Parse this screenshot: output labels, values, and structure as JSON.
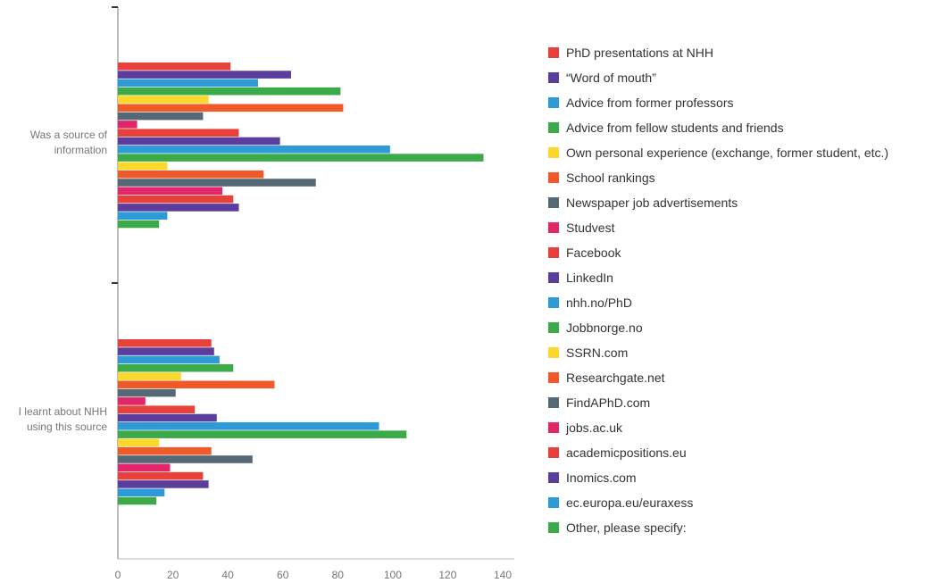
{
  "chart_data": {
    "type": "bar",
    "orientation": "horizontal",
    "categories": [
      "Was a source of information",
      "I learnt about NHH using this source"
    ],
    "category_lines": [
      [
        "Was a source of",
        "information"
      ],
      [
        "I learnt about NHH",
        "using this source"
      ]
    ],
    "xlim": [
      0,
      140
    ],
    "x_ticks": [
      "0",
      "20",
      "40",
      "60",
      "80",
      "100",
      "120",
      "140"
    ],
    "grid": false,
    "legend_position": "right",
    "series": [
      {
        "name": "PhD presentations at NHH",
        "color": "#e8403a",
        "values": [
          41,
          34
        ]
      },
      {
        "name": "“Word of mouth”",
        "color": "#5b3d9e",
        "values": [
          63,
          35
        ]
      },
      {
        "name": "Advice from former professors",
        "color": "#2e9ad8",
        "values": [
          51,
          37
        ]
      },
      {
        "name": "Advice from fellow students and friends",
        "color": "#3daa49",
        "values": [
          81,
          42
        ]
      },
      {
        "name": "Own personal experience (exchange, former student, etc.)",
        "color": "#fcd72c",
        "values": [
          33,
          23
        ]
      },
      {
        "name": "School rankings",
        "color": "#f05a28",
        "values": [
          82,
          57
        ]
      },
      {
        "name": "Newspaper job advertisements",
        "color": "#546975",
        "values": [
          31,
          21
        ]
      },
      {
        "name": "Studvest",
        "color": "#e2266a",
        "values": [
          7,
          10
        ]
      },
      {
        "name": "Facebook",
        "color": "#e8403a",
        "values": [
          44,
          28
        ]
      },
      {
        "name": "LinkedIn",
        "color": "#5b3d9e",
        "values": [
          59,
          36
        ]
      },
      {
        "name": "nhh.no/PhD",
        "color": "#2e9ad8",
        "values": [
          99,
          95
        ]
      },
      {
        "name": "Jobbnorge.no",
        "color": "#3daa49",
        "values": [
          133,
          105
        ]
      },
      {
        "name": "SSRN.com",
        "color": "#fcd72c",
        "values": [
          18,
          15
        ]
      },
      {
        "name": "Researchgate.net",
        "color": "#f05a28",
        "values": [
          53,
          34
        ]
      },
      {
        "name": "FindAPhD.com",
        "color": "#546975",
        "values": [
          72,
          49
        ]
      },
      {
        "name": "jobs.ac.uk",
        "color": "#e2266a",
        "values": [
          38,
          19
        ]
      },
      {
        "name": "academicpositions.eu",
        "color": "#e8403a",
        "values": [
          42,
          31
        ]
      },
      {
        "name": "Inomics.com",
        "color": "#5b3d9e",
        "values": [
          44,
          33
        ]
      },
      {
        "name": "ec.europa.eu/euraxess",
        "color": "#2e9ad8",
        "values": [
          18,
          17
        ]
      },
      {
        "name": "Other, please specify:",
        "color": "#3daa49",
        "values": [
          15,
          14
        ]
      }
    ]
  }
}
